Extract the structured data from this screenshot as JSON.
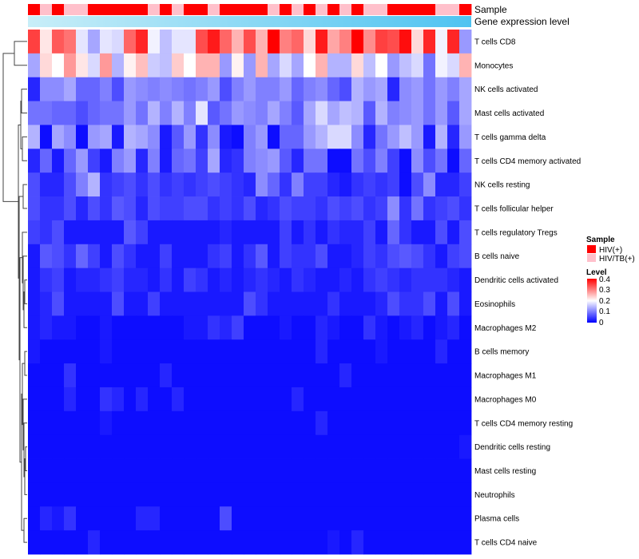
{
  "chart_data": {
    "type": "heatmap",
    "annotations": [
      "Sample",
      "Gene expression level"
    ],
    "rows": [
      "T cells CD8",
      "Monocytes",
      "NK cells activated",
      "Mast cells activated",
      "T cells gamma delta",
      "T cells CD4 memory activated",
      "NK cells resting",
      "T cells follicular helper",
      "T cells regulatory  Tregs",
      "B cells naive",
      "Dendritic cells activated",
      "Eosinophils",
      "Macrophages M2",
      "B cells memory",
      "Macrophages M1",
      "Macrophages M0",
      "T cells CD4 memory resting",
      "Dendritic cells resting",
      "Mast cells resting",
      "Neutrophils",
      "Plasma cells",
      "T cells CD4 naive"
    ],
    "n_columns": 37,
    "sample_groups": [
      "HIV(+)",
      "HIV/TB(+)",
      "HIV(+)",
      "HIV/TB(+)",
      "HIV/TB(+)",
      "HIV(+)",
      "HIV(+)",
      "HIV(+)",
      "HIV(+)",
      "HIV(+)",
      "HIV/TB(+)",
      "HIV(+)",
      "HIV/TB(+)",
      "HIV(+)",
      "HIV(+)",
      "HIV/TB(+)",
      "HIV(+)",
      "HIV(+)",
      "HIV(+)",
      "HIV(+)",
      "HIV/TB(+)",
      "HIV(+)",
      "HIV/TB(+)",
      "HIV(+)",
      "HIV/TB(+)",
      "HIV(+)",
      "HIV/TB(+)",
      "HIV(+)",
      "HIV/TB(+)",
      "HIV/TB(+)",
      "HIV(+)",
      "HIV(+)",
      "HIV(+)",
      "HIV(+)",
      "HIV/TB(+)",
      "HIV/TB(+)",
      "HIV(+)"
    ],
    "legend": {
      "sample": {
        "title": "Sample",
        "entries": [
          {
            "label": "HIV(+)",
            "color": "#ff0000"
          },
          {
            "label": "HIV/TB(+)",
            "color": "#ffc0cb"
          }
        ]
      },
      "level": {
        "title": "Level",
        "ticks": [
          0.4,
          0.3,
          0.2,
          0.1,
          0
        ],
        "colors": [
          "#0000ff",
          "#ffffff",
          "#ff0000"
        ],
        "range": [
          0,
          0.4
        ]
      }
    },
    "expression_gradient": [
      "#c8eef8",
      "#4ec3f1"
    ],
    "values": [
      [
        0.35,
        0.22,
        0.33,
        0.31,
        0.18,
        0.13,
        0.18,
        0.17,
        0.32,
        0.37,
        0.19,
        0.15,
        0.18,
        0.18,
        0.34,
        0.38,
        0.32,
        0.26,
        0.34,
        0.26,
        0.4,
        0.3,
        0.32,
        0.23,
        0.38,
        0.27,
        0.3,
        0.4,
        0.29,
        0.35,
        0.34,
        0.39,
        0.23,
        0.37,
        0.19,
        0.37,
        0.12
      ],
      [
        0.13,
        0.23,
        0.2,
        0.28,
        0.22,
        0.17,
        0.28,
        0.14,
        0.21,
        0.25,
        0.16,
        0.15,
        0.24,
        0.2,
        0.26,
        0.26,
        0.12,
        0.21,
        0.12,
        0.26,
        0.13,
        0.17,
        0.13,
        0.2,
        0.26,
        0.14,
        0.14,
        0.23,
        0.15,
        0.2,
        0.12,
        0.15,
        0.17,
        0.09,
        0.19,
        0.17,
        0.26
      ],
      [
        0.03,
        0.11,
        0.11,
        0.13,
        0.08,
        0.08,
        0.1,
        0.06,
        0.12,
        0.11,
        0.1,
        0.11,
        0.1,
        0.09,
        0.1,
        0.12,
        0.06,
        0.1,
        0.12,
        0.1,
        0.1,
        0.12,
        0.08,
        0.1,
        0.11,
        0.08,
        0.06,
        0.14,
        0.12,
        0.13,
        0.03,
        0.11,
        0.12,
        0.09,
        0.12,
        0.1,
        0.13
      ],
      [
        0.09,
        0.09,
        0.08,
        0.08,
        0.06,
        0.08,
        0.09,
        0.09,
        0.12,
        0.09,
        0.14,
        0.1,
        0.14,
        0.1,
        0.18,
        0.07,
        0.09,
        0.12,
        0.11,
        0.1,
        0.13,
        0.1,
        0.07,
        0.13,
        0.17,
        0.13,
        0.15,
        0.14,
        0.07,
        0.14,
        0.1,
        0.11,
        0.12,
        0.09,
        0.12,
        0.07,
        0.13
      ],
      [
        0.14,
        0.01,
        0.13,
        0.11,
        0.01,
        0.12,
        0.13,
        0.02,
        0.14,
        0.13,
        0.11,
        0.02,
        0.07,
        0.12,
        0.04,
        0.11,
        0.02,
        0.01,
        0.1,
        0.12,
        0.01,
        0.08,
        0.08,
        0.12,
        0.14,
        0.17,
        0.17,
        0.11,
        0.03,
        0.09,
        0.12,
        0.15,
        0.12,
        0.02,
        0.14,
        0.03,
        0.12
      ],
      [
        0.03,
        0.08,
        0.02,
        0.08,
        0.12,
        0.05,
        0.02,
        0.1,
        0.12,
        0.03,
        0.1,
        0.02,
        0.08,
        0.09,
        0.05,
        0.13,
        0.03,
        0.04,
        0.1,
        0.11,
        0.12,
        0.07,
        0.03,
        0.09,
        0.09,
        0.01,
        0.01,
        0.09,
        0.06,
        0.1,
        0.05,
        0.01,
        0.11,
        0.06,
        0.09,
        0.01,
        0.08
      ],
      [
        0.06,
        0.03,
        0.03,
        0.06,
        0.1,
        0.14,
        0.04,
        0.05,
        0.06,
        0.04,
        0.06,
        0.04,
        0.05,
        0.04,
        0.05,
        0.06,
        0.05,
        0.04,
        0.03,
        0.11,
        0.08,
        0.04,
        0.1,
        0.05,
        0.05,
        0.03,
        0.02,
        0.04,
        0.05,
        0.04,
        0.05,
        0.01,
        0.06,
        0.11,
        0.03,
        0.03,
        0.05
      ],
      [
        0.06,
        0.04,
        0.04,
        0.06,
        0.03,
        0.06,
        0.04,
        0.07,
        0.06,
        0.03,
        0.06,
        0.05,
        0.05,
        0.06,
        0.06,
        0.04,
        0.05,
        0.04,
        0.06,
        0.03,
        0.04,
        0.06,
        0.05,
        0.05,
        0.04,
        0.06,
        0.05,
        0.06,
        0.04,
        0.05,
        0.11,
        0.04,
        0.09,
        0.04,
        0.05,
        0.06,
        0.04
      ],
      [
        0.05,
        0.04,
        0.06,
        0.02,
        0.02,
        0.02,
        0.02,
        0.02,
        0.07,
        0.05,
        0.02,
        0.02,
        0.02,
        0.02,
        0.02,
        0.02,
        0.03,
        0.02,
        0.02,
        0.02,
        0.02,
        0.05,
        0.02,
        0.04,
        0.02,
        0.04,
        0.03,
        0.03,
        0.05,
        0.02,
        0.08,
        0.04,
        0.02,
        0.02,
        0.06,
        0.02,
        0.06
      ],
      [
        0.02,
        0.07,
        0.06,
        0.04,
        0.08,
        0.05,
        0.02,
        0.06,
        0.04,
        0.02,
        0.02,
        0.05,
        0.02,
        0.02,
        0.02,
        0.04,
        0.05,
        0.02,
        0.04,
        0.07,
        0.02,
        0.05,
        0.04,
        0.04,
        0.06,
        0.02,
        0.02,
        0.03,
        0.05,
        0.04,
        0.06,
        0.07,
        0.06,
        0.04,
        0.02,
        0.05,
        0.06
      ],
      [
        0.02,
        0.04,
        0.05,
        0.02,
        0.03,
        0.03,
        0.04,
        0.05,
        0.03,
        0.03,
        0.02,
        0.04,
        0.02,
        0.05,
        0.04,
        0.02,
        0.03,
        0.02,
        0.03,
        0.04,
        0.03,
        0.02,
        0.04,
        0.03,
        0.02,
        0.02,
        0.03,
        0.02,
        0.04,
        0.05,
        0.04,
        0.03,
        0.04,
        0.04,
        0.04,
        0.03,
        0.02
      ],
      [
        0.02,
        0.03,
        0.06,
        0.02,
        0.02,
        0.02,
        0.02,
        0.06,
        0.02,
        0.02,
        0.05,
        0.02,
        0.02,
        0.02,
        0.02,
        0.02,
        0.02,
        0.02,
        0.06,
        0.04,
        0.02,
        0.02,
        0.02,
        0.02,
        0.02,
        0.04,
        0.02,
        0.02,
        0.02,
        0.03,
        0.06,
        0.04,
        0.04,
        0.06,
        0.02,
        0.06,
        0.02
      ],
      [
        0.02,
        0.03,
        0.02,
        0.02,
        0.01,
        0.01,
        0.02,
        0.01,
        0.01,
        0.01,
        0.01,
        0.01,
        0.01,
        0.02,
        0.02,
        0.04,
        0.03,
        0.05,
        0.01,
        0.01,
        0.01,
        0.02,
        0.01,
        0.01,
        0.03,
        0.02,
        0.01,
        0.01,
        0.04,
        0.02,
        0.01,
        0.02,
        0.03,
        0.01,
        0.02,
        0.03,
        0.01
      ],
      [
        0.02,
        0.01,
        0.01,
        0.01,
        0.01,
        0.01,
        0.02,
        0.01,
        0.01,
        0.01,
        0.01,
        0.01,
        0.01,
        0.01,
        0.01,
        0.01,
        0.01,
        0.01,
        0.01,
        0.01,
        0.01,
        0.01,
        0.01,
        0.01,
        0.03,
        0.01,
        0.01,
        0.01,
        0.01,
        0.02,
        0.01,
        0.01,
        0.01,
        0.01,
        0.03,
        0.01,
        0.01
      ],
      [
        0.01,
        0.01,
        0.01,
        0.04,
        0.01,
        0.01,
        0.01,
        0.01,
        0.01,
        0.01,
        0.01,
        0.03,
        0.01,
        0.01,
        0.01,
        0.01,
        0.01,
        0.01,
        0.01,
        0.01,
        0.01,
        0.01,
        0.01,
        0.01,
        0.01,
        0.01,
        0.03,
        0.01,
        0.01,
        0.01,
        0.01,
        0.01,
        0.01,
        0.01,
        0.01,
        0.01,
        0.01
      ],
      [
        0.01,
        0.01,
        0.01,
        0.03,
        0.01,
        0.01,
        0.04,
        0.03,
        0.01,
        0.03,
        0.01,
        0.01,
        0.03,
        0.01,
        0.01,
        0.01,
        0.01,
        0.01,
        0.01,
        0.01,
        0.01,
        0.01,
        0.03,
        0.01,
        0.01,
        0.01,
        0.01,
        0.01,
        0.01,
        0.01,
        0.01,
        0.01,
        0.01,
        0.01,
        0.01,
        0.01,
        0.01
      ],
      [
        0.01,
        0.01,
        0.01,
        0.01,
        0.01,
        0.01,
        0.02,
        0.01,
        0.01,
        0.01,
        0.01,
        0.01,
        0.01,
        0.01,
        0.01,
        0.01,
        0.01,
        0.01,
        0.01,
        0.01,
        0.01,
        0.01,
        0.01,
        0.01,
        0.03,
        0.01,
        0.01,
        0.01,
        0.01,
        0.01,
        0.01,
        0.01,
        0.01,
        0.01,
        0.01,
        0.01,
        0.01
      ],
      [
        0.01,
        0.01,
        0.01,
        0.01,
        0.01,
        0.01,
        0.01,
        0.01,
        0.01,
        0.01,
        0.01,
        0.01,
        0.01,
        0.01,
        0.01,
        0.01,
        0.01,
        0.01,
        0.01,
        0.01,
        0.01,
        0.01,
        0.01,
        0.01,
        0.01,
        0.01,
        0.01,
        0.01,
        0.01,
        0.01,
        0.01,
        0.01,
        0.01,
        0.01,
        0.01,
        0.01,
        0.02
      ],
      [
        0.01,
        0.01,
        0.01,
        0.01,
        0.01,
        0.01,
        0.01,
        0.01,
        0.01,
        0.01,
        0.01,
        0.01,
        0.01,
        0.01,
        0.01,
        0.01,
        0.01,
        0.01,
        0.01,
        0.01,
        0.01,
        0.01,
        0.01,
        0.01,
        0.01,
        0.01,
        0.01,
        0.01,
        0.01,
        0.01,
        0.01,
        0.01,
        0.01,
        0.01,
        0.01,
        0.01,
        0.01
      ],
      [
        0.01,
        0.01,
        0.01,
        0.01,
        0.01,
        0.01,
        0.01,
        0.01,
        0.01,
        0.01,
        0.01,
        0.01,
        0.01,
        0.01,
        0.01,
        0.01,
        0.01,
        0.01,
        0.01,
        0.01,
        0.01,
        0.01,
        0.01,
        0.01,
        0.01,
        0.01,
        0.01,
        0.01,
        0.01,
        0.01,
        0.01,
        0.01,
        0.01,
        0.01,
        0.01,
        0.01,
        0.01
      ],
      [
        0.01,
        0.03,
        0.02,
        0.04,
        0.01,
        0.01,
        0.01,
        0.01,
        0.01,
        0.03,
        0.03,
        0.01,
        0.01,
        0.01,
        0.01,
        0.01,
        0.06,
        0.01,
        0.01,
        0.01,
        0.01,
        0.01,
        0.01,
        0.01,
        0.01,
        0.01,
        0.01,
        0.01,
        0.01,
        0.01,
        0.01,
        0.01,
        0.01,
        0.01,
        0.01,
        0.01,
        0.01
      ],
      [
        0.01,
        0.01,
        0.01,
        0.01,
        0.01,
        0.03,
        0.01,
        0.01,
        0.01,
        0.01,
        0.01,
        0.01,
        0.01,
        0.01,
        0.01,
        0.01,
        0.01,
        0.01,
        0.01,
        0.01,
        0.01,
        0.01,
        0.01,
        0.01,
        0.01,
        0.02,
        0.01,
        0.03,
        0.01,
        0.01,
        0.01,
        0.01,
        0.01,
        0.01,
        0.01,
        0.01,
        0.01
      ]
    ]
  }
}
